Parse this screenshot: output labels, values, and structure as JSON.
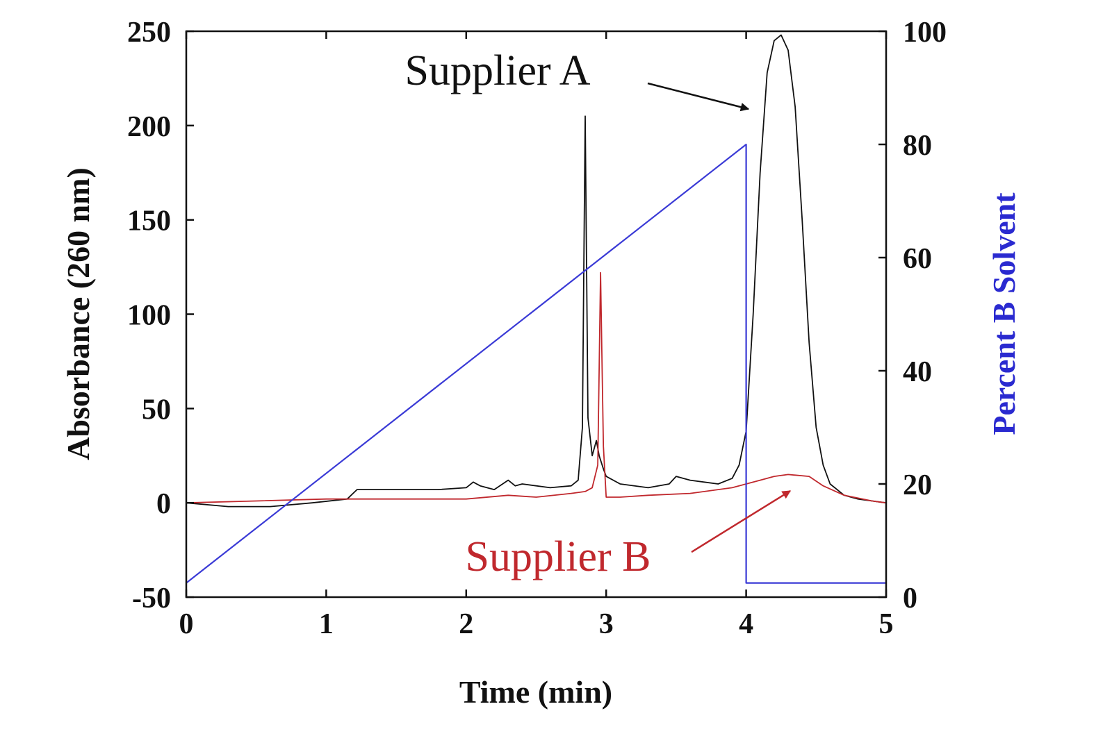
{
  "chart_data": {
    "type": "line",
    "xlabel": "Time (min)",
    "ylabel_left": "Absorbance (260 nm)",
    "ylabel_right": "Percent B Solvent",
    "xlim": [
      0,
      5
    ],
    "ylim_left": [
      -50,
      250
    ],
    "ylim_right": [
      0,
      100
    ],
    "x_ticks": [
      "0",
      "1",
      "2",
      "3",
      "4",
      "5"
    ],
    "y_left_ticks": [
      "250",
      "200",
      "150",
      "100",
      "50",
      "0",
      "-50"
    ],
    "y_right_ticks": [
      "100",
      "80",
      "60",
      "40",
      "20",
      "0"
    ],
    "grid": false,
    "colors": {
      "supplier_a": "#111111",
      "supplier_b": "#c0282d",
      "gradient": "#3a3ad6",
      "axis": "#111111"
    },
    "annotations": [
      {
        "text": "Supplier A",
        "color": "#111111",
        "anchor_x": 4.0,
        "anchor_y": 206,
        "series": "Supplier A"
      },
      {
        "text": "Supplier B",
        "color": "#c0282d",
        "anchor_x": 4.33,
        "anchor_y": 7,
        "series": "Supplier B"
      }
    ],
    "series": [
      {
        "name": "Supplier A",
        "axis": "left",
        "x": [
          0,
          0.3,
          0.6,
          0.9,
          1.15,
          1.22,
          1.5,
          1.8,
          2.0,
          2.05,
          2.1,
          2.2,
          2.3,
          2.35,
          2.4,
          2.6,
          2.75,
          2.8,
          2.83,
          2.85,
          2.87,
          2.9,
          2.93,
          2.95,
          2.98,
          3.0,
          3.1,
          3.3,
          3.45,
          3.5,
          3.6,
          3.8,
          3.9,
          3.95,
          4.0,
          4.05,
          4.1,
          4.15,
          4.2,
          4.25,
          4.3,
          4.35,
          4.4,
          4.45,
          4.5,
          4.55,
          4.6,
          4.7,
          4.8,
          4.9,
          5.0
        ],
        "y": [
          0,
          -2,
          -2,
          0,
          2,
          7,
          7,
          7,
          8,
          11,
          9,
          7,
          12,
          9,
          10,
          8,
          9,
          12,
          40,
          205,
          45,
          25,
          33,
          25,
          18,
          14,
          10,
          8,
          10,
          14,
          12,
          10,
          13,
          20,
          38,
          100,
          175,
          228,
          245,
          248,
          240,
          210,
          150,
          85,
          40,
          20,
          10,
          4,
          2,
          1,
          0
        ]
      },
      {
        "name": "Supplier B",
        "axis": "left",
        "x": [
          0,
          0.5,
          1.0,
          1.5,
          2.0,
          2.3,
          2.5,
          2.75,
          2.85,
          2.9,
          2.94,
          2.96,
          2.98,
          3.0,
          3.1,
          3.3,
          3.6,
          3.9,
          4.1,
          4.2,
          4.3,
          4.45,
          4.55,
          4.7,
          4.9,
          5.0
        ],
        "y": [
          0,
          1,
          2,
          2,
          2,
          4,
          3,
          5,
          6,
          8,
          20,
          122,
          30,
          3,
          3,
          4,
          5,
          8,
          12,
          14,
          15,
          14,
          9,
          4,
          1,
          0
        ]
      },
      {
        "name": "Percent B Solvent",
        "axis": "right",
        "x": [
          0,
          4.0,
          4.0,
          5.0
        ],
        "y": [
          2.5,
          80,
          2.5,
          2.5
        ]
      }
    ]
  }
}
